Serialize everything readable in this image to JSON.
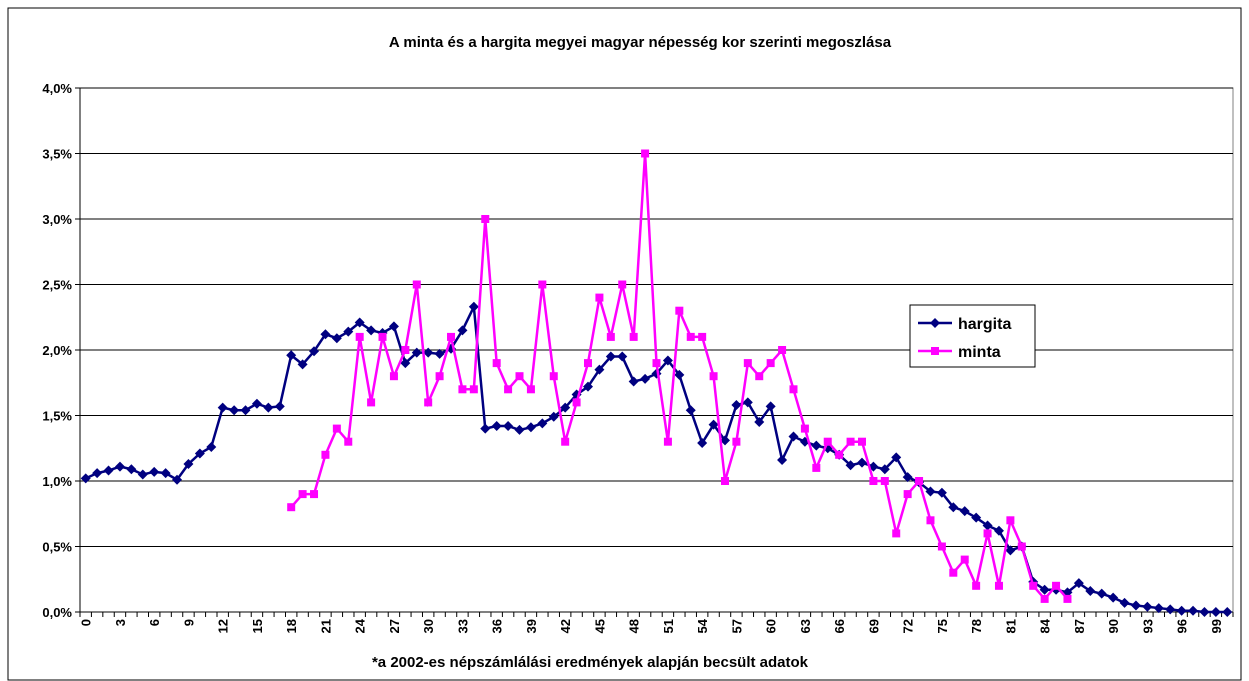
{
  "chart_data": {
    "type": "line",
    "title": "A minta és a hargita megyei magyar népesség kor szerinti megoszlása",
    "note": "*a 2002-es népszámlálási eredmények alapján becsült adatok",
    "categories": [
      "0",
      null,
      null,
      "3",
      null,
      null,
      "6",
      null,
      null,
      "9",
      null,
      null,
      "12",
      null,
      null,
      "15",
      null,
      null,
      "18",
      null,
      null,
      "21",
      null,
      null,
      "24",
      null,
      null,
      "27",
      null,
      null,
      "30",
      null,
      null,
      "33",
      null,
      null,
      "36",
      null,
      null,
      "39",
      null,
      null,
      "42",
      null,
      null,
      "45",
      null,
      null,
      "48",
      null,
      null,
      "51",
      null,
      null,
      "54",
      null,
      null,
      "57",
      null,
      null,
      "60",
      null,
      null,
      "63",
      null,
      null,
      "66",
      null,
      null,
      "69",
      null,
      null,
      "72",
      null,
      null,
      "75",
      null,
      null,
      "78",
      null,
      null,
      "81",
      null,
      null,
      "84",
      null,
      null,
      "87",
      null,
      null,
      "90",
      null,
      null,
      "93",
      null,
      null,
      "96",
      null,
      null,
      "99",
      null
    ],
    "series": [
      {
        "name": "hargita",
        "color": "#000080",
        "marker": "diamond",
        "values": [
          1.02,
          1.06,
          1.08,
          1.11,
          1.09,
          1.05,
          1.07,
          1.06,
          1.01,
          1.13,
          1.21,
          1.26,
          1.56,
          1.54,
          1.54,
          1.59,
          1.56,
          1.57,
          1.96,
          1.89,
          1.99,
          2.12,
          2.09,
          2.14,
          2.21,
          2.15,
          2.13,
          2.18,
          1.9,
          1.98,
          1.98,
          1.97,
          2.01,
          2.15,
          2.33,
          1.4,
          1.42,
          1.42,
          1.39,
          1.41,
          1.44,
          1.49,
          1.56,
          1.66,
          1.72,
          1.85,
          1.95,
          1.95,
          1.76,
          1.78,
          1.82,
          1.92,
          1.81,
          1.54,
          1.29,
          1.43,
          1.31,
          1.58,
          1.6,
          1.45,
          1.57,
          1.16,
          1.34,
          1.3,
          1.27,
          1.25,
          1.2,
          1.12,
          1.14,
          1.11,
          1.09,
          1.18,
          1.03,
          0.99,
          0.92,
          0.91,
          0.8,
          0.77,
          0.72,
          0.66,
          0.62,
          0.47,
          0.5,
          0.23,
          0.17,
          0.17,
          0.15,
          0.22,
          0.16,
          0.14,
          0.11,
          0.07,
          0.05,
          0.04,
          0.03,
          0.02,
          0.01,
          0.01,
          0.0,
          0.0,
          0.0
        ]
      },
      {
        "name": "minta",
        "color": "#ff00ff",
        "marker": "square",
        "values": [
          null,
          null,
          null,
          null,
          null,
          null,
          null,
          null,
          null,
          null,
          null,
          null,
          null,
          null,
          null,
          null,
          null,
          null,
          0.8,
          0.9,
          0.9,
          1.2,
          1.4,
          1.3,
          2.1,
          1.6,
          2.1,
          1.8,
          2.0,
          2.5,
          1.6,
          1.8,
          2.1,
          1.7,
          1.7,
          3.0,
          1.9,
          1.7,
          1.8,
          1.7,
          2.5,
          1.8,
          1.3,
          1.6,
          1.9,
          2.4,
          2.1,
          2.5,
          2.1,
          3.5,
          1.9,
          1.3,
          2.3,
          2.1,
          2.1,
          1.8,
          1.0,
          1.3,
          1.9,
          1.8,
          1.9,
          2.0,
          1.7,
          1.4,
          1.1,
          1.3,
          1.2,
          1.3,
          1.3,
          1.0,
          1.0,
          0.6,
          0.9,
          1.0,
          0.7,
          0.5,
          0.3,
          0.4,
          0.2,
          0.6,
          0.2,
          0.7,
          0.5,
          0.2,
          0.1,
          0.2,
          0.1,
          null,
          null,
          null,
          null,
          null,
          null,
          null,
          null,
          null,
          null,
          null,
          null,
          null,
          null
        ]
      }
    ],
    "ylim": [
      0,
      4
    ],
    "yticks": [
      {
        "value": 0,
        "label": "0,0%"
      },
      {
        "value": 0.5,
        "label": "0,5%"
      },
      {
        "value": 1,
        "label": "1,0%"
      },
      {
        "value": 1.5,
        "label": "1,5%"
      },
      {
        "value": 2,
        "label": "2,0%"
      },
      {
        "value": 2.5,
        "label": "2,5%"
      },
      {
        "value": 3,
        "label": "3,0%"
      },
      {
        "value": 3.5,
        "label": "3,5%"
      },
      {
        "value": 4,
        "label": "4,0%"
      }
    ],
    "grid": true,
    "legend": "right"
  }
}
